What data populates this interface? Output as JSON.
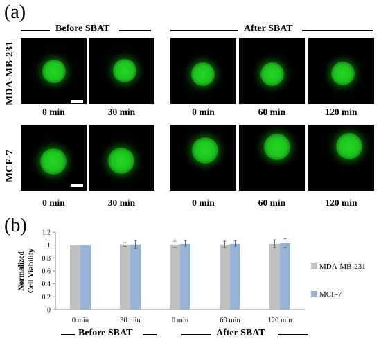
{
  "panel_a": {
    "label": "(a)",
    "before_group": "Before SBAT",
    "after_group": "After SBAT",
    "rows": [
      {
        "label": "MDA-MB-231",
        "times": [
          "0 min",
          "30 min",
          "0 min",
          "60 min",
          "120 min"
        ]
      },
      {
        "label": "MCF-7",
        "times": [
          "0 min",
          "30 min",
          "0 min",
          "60 min",
          "120 min"
        ]
      }
    ],
    "colors": {
      "background": "#000000",
      "fluorescence": "#1fd11f"
    }
  },
  "panel_b": {
    "label": "(b)",
    "before_group": "Before SBAT",
    "after_group": "After SBAT"
  },
  "chart_data": {
    "type": "bar",
    "categories": [
      "0 min",
      "30 min",
      "0 min",
      "60 min",
      "120 min"
    ],
    "series": [
      {
        "name": "MDA-MB-231",
        "color": "#c0c0c0",
        "values": [
          1.0,
          1.01,
          1.01,
          1.01,
          1.02
        ],
        "errors": [
          0.0,
          0.03,
          0.05,
          0.05,
          0.06
        ]
      },
      {
        "name": "MCF-7",
        "color": "#95b3d7",
        "values": [
          1.0,
          1.01,
          1.02,
          1.02,
          1.03
        ],
        "errors": [
          0.0,
          0.06,
          0.05,
          0.05,
          0.07
        ]
      }
    ],
    "ylabel": "Normalized Cell Viability",
    "ylim": [
      0,
      1.2
    ],
    "yticks": [
      "0",
      "0.2",
      "0.4",
      "0.6",
      "0.8",
      "1",
      "1.2"
    ],
    "legend_position": "right",
    "grid": false
  }
}
